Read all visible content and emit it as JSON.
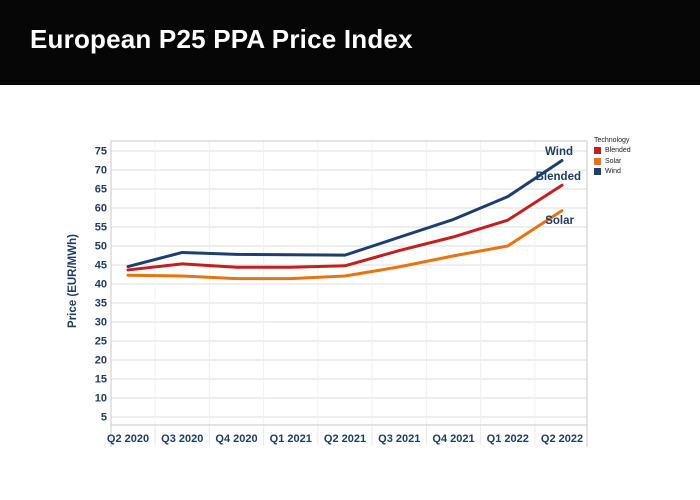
{
  "header": {
    "title": "European P25 PPA Price Index"
  },
  "chart_data": {
    "type": "line",
    "title": "European P25 PPA Price Index",
    "xlabel": "",
    "ylabel": "Price (EUR/MWh)",
    "categories": [
      "Q2 2020",
      "Q3 2020",
      "Q4 2020",
      "Q1 2021",
      "Q2 2021",
      "Q3 2021",
      "Q4 2021",
      "Q1 2022",
      "Q2 2022"
    ],
    "series": [
      {
        "name": "Blended",
        "color": "#c41f1f",
        "values": [
          43.7,
          45.3,
          44.4,
          44.4,
          44.8,
          48.8,
          52.4,
          56.8,
          66.0
        ]
      },
      {
        "name": "Solar",
        "color": "#e8740f",
        "values": [
          42.3,
          42.1,
          41.4,
          41.4,
          42.1,
          44.5,
          47.4,
          50.0,
          59.3
        ]
      },
      {
        "name": "Wind",
        "color": "#1d3f6e",
        "values": [
          44.6,
          48.3,
          47.8,
          47.7,
          47.6,
          52.3,
          57.0,
          63.0,
          72.5
        ]
      }
    ],
    "yticks": [
      75,
      70,
      65,
      60,
      55,
      50,
      45,
      40,
      35,
      30,
      25,
      20,
      15,
      10,
      5
    ],
    "ylim": [
      3,
      77
    ],
    "grid": "horizontal",
    "line_labels": [
      "Wind",
      "Blended",
      "Solar"
    ],
    "legend": {
      "title": "Technology",
      "position": "top-right",
      "items": [
        "Blended",
        "Solar",
        "Wind"
      ]
    },
    "colors": {
      "axis_text": "#1e3c64",
      "gridline": "#dedede",
      "plot_border": "#c9c9c9",
      "header_bg": "#060606",
      "header_text": "#ffffff"
    }
  }
}
